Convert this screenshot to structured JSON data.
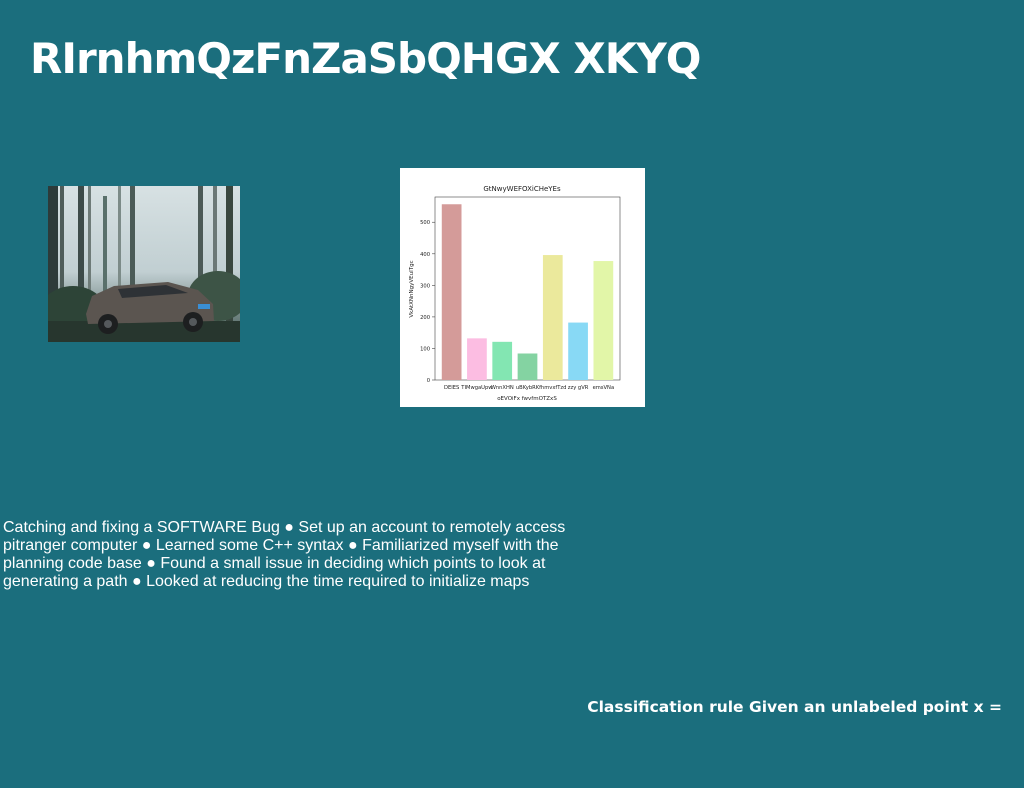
{
  "title": "RIrnhmQzFnZaSbQHGX XKYQ",
  "body_text": "Catching and fixing a SOFTWARE Bug ● Set up an account to remotely access pitranger computer ● Learned some C++ syntax ● Familiarized myself with the planning code base ● Found a small issue in deciding which points to look at generating a path ● Looked at reducing the time required to initialize maps",
  "rule_text": "Classification rule Given an unlabeled point x =",
  "colors": {
    "background": "#1b6e7d"
  },
  "chart_data": {
    "type": "bar",
    "title": "GtNwyWEFOXiCHeYEs",
    "xlabel": "oEVOiFx fwvfmOTZxS",
    "ylabel": "VkAtXNnNgyVEuITgc",
    "categories": [
      "DEIES",
      "TIMwgaUpw",
      "WnnXHN",
      "uBKybRK",
      "fhmvxfTzd",
      "zzy gVR",
      "emsVNa"
    ],
    "values": [
      557,
      132,
      121,
      84,
      396,
      182,
      377
    ],
    "colors": [
      "#d49b99",
      "#fcbde2",
      "#83e6b2",
      "#84d3a2",
      "#ebe99c",
      "#88d9f5",
      "#e2f6a8"
    ],
    "ylim": [
      0,
      580
    ],
    "yticks": [
      0,
      100,
      200,
      300,
      400,
      500
    ],
    "grid": false
  }
}
